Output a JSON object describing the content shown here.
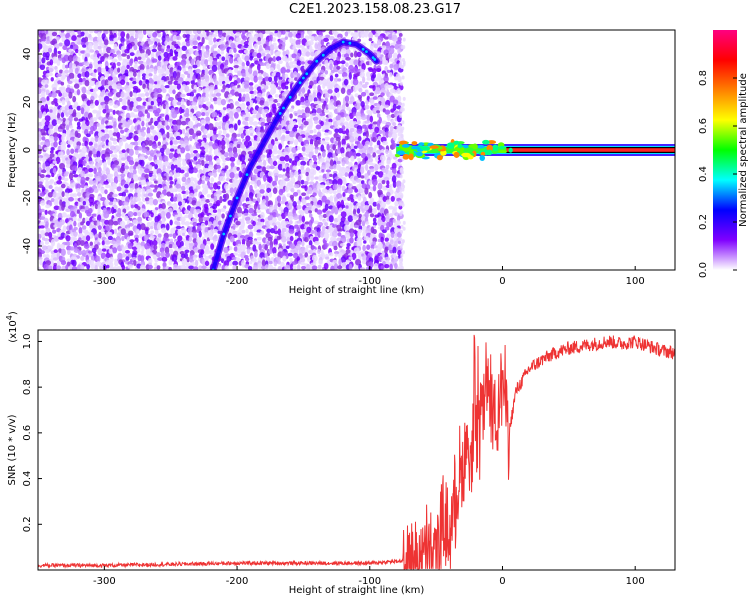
{
  "title": "C2E1.2023.158.08.23.G17",
  "chart_data": [
    {
      "type": "heatmap",
      "xlabel": "Height of straight line (km)",
      "ylabel": "Frequency (Hz)",
      "xlim": [
        -350,
        130
      ],
      "ylim": [
        -50,
        50
      ],
      "x_ticks": [
        -300,
        -200,
        -100,
        0,
        100
      ],
      "x_tick_labels": [
        "-300",
        "-200",
        "-100",
        "0",
        "100"
      ],
      "y_ticks": [
        -40,
        -20,
        0,
        20,
        40
      ],
      "y_tick_labels": [
        "-40",
        "-20",
        "0",
        "20",
        "40"
      ],
      "noise_region": {
        "x_from": -350,
        "x_to": -77
      },
      "doppler_track": {
        "x": [
          -218,
          -210,
          -200,
          -190,
          -180,
          -170,
          -160,
          -150,
          -140,
          -130,
          -120,
          -110,
          -100,
          -95
        ],
        "y": [
          -50,
          -35,
          -20,
          -7,
          3,
          13,
          22,
          30,
          37,
          42,
          45,
          44,
          40,
          37
        ]
      },
      "carrier_line": {
        "x_from": -80,
        "x_to": 130,
        "y": 0
      },
      "colorbar": {
        "label": "Normalized spectral amplitude",
        "ticks": [
          0.0,
          0.2,
          0.4,
          0.6,
          0.8
        ],
        "tick_labels": [
          "0.0",
          "0.2",
          "0.4",
          "0.6",
          "0.8"
        ],
        "colors": [
          "#ffffff",
          "#8000ff",
          "#0000ff",
          "#00ffff",
          "#00ff00",
          "#ffff00",
          "#ff8000",
          "#ff0000",
          "#ff0080"
        ]
      },
      "grid": false
    },
    {
      "type": "line",
      "xlabel": "Height of straight line (km)",
      "ylabel": "SNR (10 * v/v)",
      "y_scale_label": "(x10",
      "y_scale_exp": "4",
      "y_scale_close": ")",
      "xlim": [
        -350,
        130
      ],
      "ylim": [
        0,
        1.05
      ],
      "x_ticks": [
        -300,
        -200,
        -100,
        0,
        100
      ],
      "x_tick_labels": [
        "-300",
        "-200",
        "-100",
        "0",
        "100"
      ],
      "y_ticks": [
        0.2,
        0.4,
        0.6,
        0.8,
        1.0
      ],
      "y_tick_labels": [
        "0.2",
        "0.4",
        "0.6",
        "0.8",
        "1.0"
      ],
      "series": [
        {
          "color": "#ee3333",
          "x": [
            -350,
            -300,
            -250,
            -200,
            -150,
            -100,
            -75,
            -60,
            -50,
            -45,
            -40,
            -35,
            -30,
            -25,
            -20,
            -15,
            -10,
            -5,
            0,
            5,
            10,
            20,
            30,
            40,
            50,
            60,
            70,
            80,
            90,
            100,
            110,
            120,
            130
          ],
          "y": [
            0.02,
            0.02,
            0.025,
            0.03,
            0.03,
            0.03,
            0.04,
            0.05,
            0.08,
            0.2,
            0.15,
            0.35,
            0.45,
            0.6,
            0.55,
            0.7,
            0.75,
            0.65,
            0.85,
            0.6,
            0.78,
            0.88,
            0.92,
            0.95,
            0.97,
            0.98,
            0.99,
            1.0,
            0.99,
            1.0,
            0.98,
            0.96,
            0.95
          ]
        }
      ],
      "grid": false
    }
  ]
}
